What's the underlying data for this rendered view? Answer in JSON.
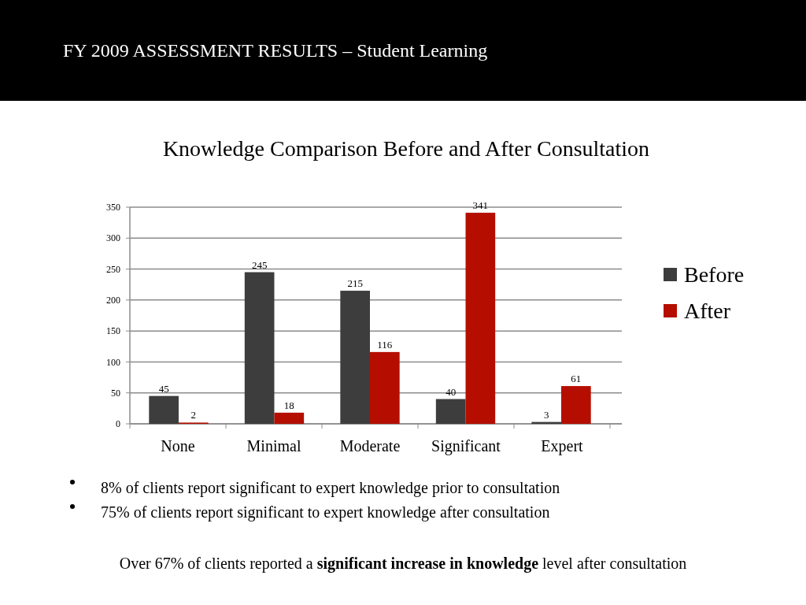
{
  "chart_data": {
    "type": "bar",
    "title": "FY 2009 ASSESSMENT RESULTS – Student Learning",
    "subtitle": "Knowledge Comparison Before and After Consultation",
    "categories": [
      "None",
      "Minimal",
      "Moderate",
      "Significant",
      "Expert"
    ],
    "series": [
      {
        "name": "Before",
        "color": "#3d3d3d",
        "values": [
          45,
          245,
          215,
          40,
          3
        ]
      },
      {
        "name": "After",
        "color": "#b50e00",
        "values": [
          2,
          18,
          116,
          341,
          61
        ]
      }
    ],
    "ylim": [
      0,
      350
    ],
    "yticks": [
      0,
      50,
      100,
      150,
      200,
      250,
      300,
      350
    ],
    "grid": "y",
    "legend": "right",
    "data_labels": true,
    "annotations": [
      "8% of clients report significant to expert knowledge prior to consultation",
      "75% of clients report significant to expert knowledge after consultation",
      "Over 67% of clients reported a",
      "significant increase in knowledge",
      "level after consultation"
    ]
  }
}
